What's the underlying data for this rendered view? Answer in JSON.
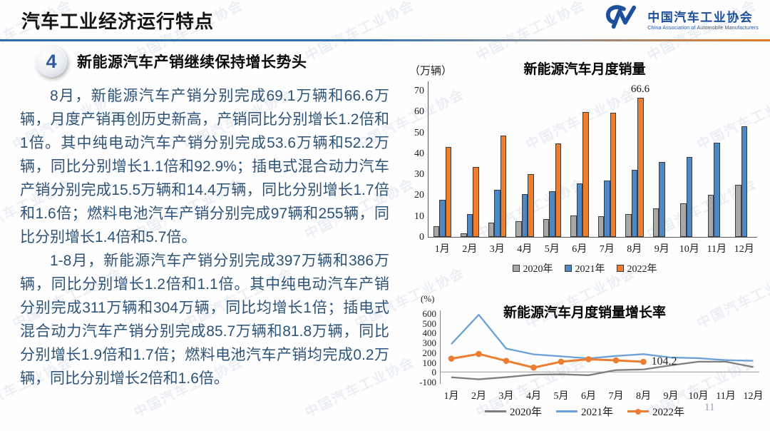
{
  "header": {
    "title": "汽车工业经济运行特点",
    "logo": {
      "org_cn": "中国汽车工业协会",
      "org_en": "China Association of Automobile Manufacturers"
    }
  },
  "section": {
    "number": "4",
    "heading": "新能源汽车产销继续保持增长势头",
    "paragraphs": [
      "8月，新能源汽车产销分别完成69.1万辆和66.6万辆，月度产销再创历史新高，产销同比分别增长1.2倍和1倍。其中纯电动汽车产销分别完成53.6万辆和52.2万辆，同比分别增长1.1倍和92.9%；插电式混合动力汽车产销分别完成15.5万辆和14.4万辆，同比分别增长1.7倍和1.6倍；燃料电池汽车产销分别完成97辆和255辆，同比分别增长1.4倍和5.7倍。",
      "1-8月，新能源汽车产销分别完成397万辆和386万辆，同比分别增长1.2倍和1.1倍。其中纯电动汽车产销分别完成311万辆和304万辆，同比均增长1倍；插电式混合动力汽车产销分别完成85.7万辆和81.8万辆，同比分别增长1.9倍和1.7倍；燃料电池汽车产销均完成0.2万辆，同比分别增长2倍和1.6倍。"
    ]
  },
  "chart_data": [
    {
      "type": "bar",
      "title": "新能源汽车月度销量",
      "unit": "（万辆）",
      "ylabel": "万辆",
      "ylim": [
        0,
        70
      ],
      "yticks": [
        70,
        60,
        50,
        40,
        30,
        20,
        10,
        0
      ],
      "grid": false,
      "legend_position": "bottom",
      "categories": [
        "1月",
        "2月",
        "3月",
        "4月",
        "5月",
        "6月",
        "7月",
        "8月",
        "9月",
        "10月",
        "11月",
        "12月"
      ],
      "series": [
        {
          "name": "2020年",
          "color": "#a8a8a8",
          "values": [
            5,
            1.8,
            6.8,
            7.5,
            8.4,
            10.4,
            9.8,
            10.9,
            13.8,
            16,
            20,
            24.8
          ]
        },
        {
          "name": "2021年",
          "color": "#4e87c6",
          "values": [
            17.9,
            11,
            22.6,
            20.6,
            21.7,
            25.6,
            27.1,
            32.1,
            35.7,
            38.3,
            45,
            53.1
          ]
        },
        {
          "name": "2022年",
          "color": "#ed7d31",
          "values": [
            43.1,
            33.4,
            48.4,
            29.9,
            44.7,
            59.6,
            59.3,
            66.6,
            null,
            null,
            null,
            null
          ]
        }
      ],
      "annotation": {
        "series": "2022年",
        "category": "8月",
        "value": 66.6,
        "text": "66.6"
      }
    },
    {
      "type": "line",
      "title": "新能源汽车月度销量增长率",
      "unit": "(%)",
      "ylabel": "%",
      "ylim": [
        -100,
        600
      ],
      "yticks": [
        600,
        500,
        400,
        300,
        200,
        100,
        0,
        -100
      ],
      "grid": false,
      "legend_position": "bottom",
      "categories": [
        "1月",
        "2月",
        "3月",
        "4月",
        "5月",
        "6月",
        "7月",
        "8月",
        "9月",
        "10月",
        "11月",
        "12月"
      ],
      "series": [
        {
          "name": "2020年",
          "color": "#7f7f7f",
          "marker": false,
          "values": [
            -54,
            -75,
            -53,
            -27,
            -24,
            -33,
            19,
            26,
            68,
            105,
            105,
            50
          ]
        },
        {
          "name": "2021年",
          "color": "#6aa1d8",
          "marker": false,
          "values": [
            285,
            585,
            239,
            180,
            160,
            139,
            164,
            182,
            148,
            141,
            121,
            114
          ]
        },
        {
          "name": "2022年",
          "color": "#ed7d31",
          "marker": true,
          "values": [
            136,
            184,
            114,
            45,
            105,
            130,
            119,
            104.2,
            null,
            null,
            null,
            null
          ]
        }
      ],
      "annotation": {
        "series": "2022年",
        "category": "8月",
        "value": 104.2,
        "text": "104.2"
      }
    }
  ],
  "footer": {
    "page_number": "11"
  },
  "watermark": {
    "text": "中国汽车工业协会"
  }
}
